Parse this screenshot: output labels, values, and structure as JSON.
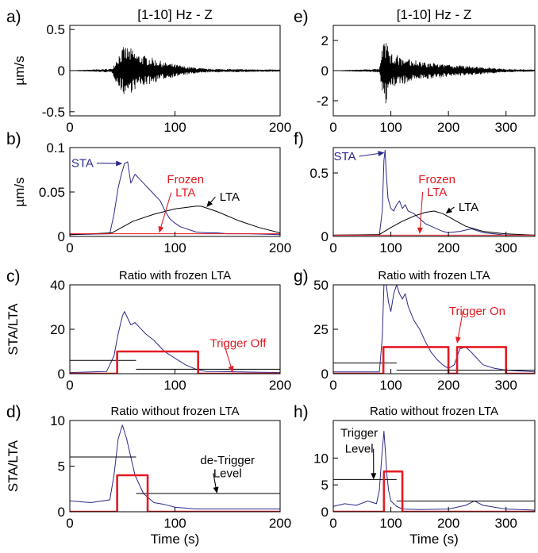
{
  "colors": {
    "sta": "#2b2a8c",
    "lta": "#000000",
    "trigger": "#e31b23",
    "annotation_red": "#e31b23",
    "axis": "#000000"
  },
  "chart_data": [
    {
      "panel": "a)",
      "type": "line",
      "title": "[1-10] Hz - Z",
      "xlabel": "",
      "ylabel": "µm/s",
      "xlim": [
        0,
        200
      ],
      "ylim": [
        -0.55,
        0.55
      ],
      "xticks": [
        0,
        100,
        200
      ],
      "xtick_labels": [
        "0",
        "100",
        "200"
      ],
      "yticks": [
        -0.5,
        0,
        0.5
      ],
      "ytick_labels": [
        "-0.5",
        "0",
        "0.5"
      ],
      "series": [
        {
          "role": "waveform",
          "color": "#000000",
          "x": [
            0,
            40,
            46,
            52,
            58,
            65,
            75,
            90,
            110,
            130,
            200
          ],
          "values": [
            0,
            0.02,
            0.2,
            0.3,
            0.27,
            0.2,
            0.17,
            0.1,
            0.05,
            0.02,
            0.01
          ]
        }
      ],
      "annotations": []
    },
    {
      "panel": "b)",
      "type": "line",
      "title": "",
      "xlabel": "",
      "ylabel": "µm/s",
      "xlim": [
        0,
        200
      ],
      "ylim": [
        0,
        0.1
      ],
      "xticks": [
        0,
        100,
        200
      ],
      "xtick_labels": [
        "0",
        "100",
        "200"
      ],
      "yticks": [
        0,
        0.05,
        0.1
      ],
      "ytick_labels": [
        "0",
        "0.05",
        "0.1"
      ],
      "series": [
        {
          "role": "sta",
          "color": "#2b2a8c",
          "x": [
            0,
            38,
            42,
            46,
            49,
            52,
            55,
            58,
            62,
            66,
            70,
            74,
            78,
            82,
            86,
            90,
            95,
            100,
            105,
            110,
            115,
            120,
            130,
            140,
            150,
            170,
            200
          ],
          "values": [
            0.002,
            0.003,
            0.025,
            0.055,
            0.07,
            0.082,
            0.084,
            0.06,
            0.07,
            0.065,
            0.06,
            0.055,
            0.05,
            0.045,
            0.04,
            0.03,
            0.02,
            0.015,
            0.011,
            0.009,
            0.007,
            0.005,
            0.004,
            0.004,
            0.003,
            0.003,
            0.002
          ]
        },
        {
          "role": "lta",
          "color": "#000000",
          "x": [
            0,
            40,
            60,
            80,
            100,
            120,
            125,
            140,
            160,
            180,
            200
          ],
          "values": [
            0.002,
            0.004,
            0.017,
            0.025,
            0.031,
            0.034,
            0.034,
            0.028,
            0.018,
            0.01,
            0.004
          ]
        },
        {
          "role": "frozen-lta",
          "color": "#e31b23",
          "x": [
            0,
            200
          ],
          "values": [
            0.003,
            0.003
          ]
        }
      ],
      "annotations": [
        {
          "text": "STA",
          "color": "#2b2a8c",
          "x": 12,
          "y": 0.078,
          "arrow_to": [
            50,
            0.082
          ]
        },
        {
          "text": "Frozen",
          "color": "#e31b23",
          "x": 110,
          "y": 0.06
        },
        {
          "text": "LTA",
          "color": "#e31b23",
          "x": 110,
          "y": 0.045,
          "arrow_to": [
            85,
            0.004
          ]
        },
        {
          "text": "LTA",
          "color": "#000000",
          "x": 152,
          "y": 0.04,
          "arrow_to": [
            130,
            0.033
          ]
        }
      ]
    },
    {
      "panel": "c)",
      "type": "line",
      "title": "Ratio with frozen LTA",
      "xlabel": "",
      "ylabel": "STA/LTA",
      "xlim": [
        0,
        200
      ],
      "ylim": [
        0,
        40
      ],
      "xticks": [
        0,
        100,
        200
      ],
      "xtick_labels": [
        "0",
        "100",
        "200"
      ],
      "yticks": [
        0,
        20,
        40
      ],
      "ytick_labels": [
        "0",
        "20",
        "40"
      ],
      "series": [
        {
          "role": "ratio",
          "color": "#2b2a8c",
          "x": [
            0,
            35,
            42,
            46,
            50,
            52,
            55,
            58,
            62,
            66,
            72,
            80,
            90,
            100,
            110,
            120,
            130,
            140,
            200
          ],
          "values": [
            0.5,
            1,
            8,
            18,
            26,
            28,
            25,
            22,
            23,
            21,
            18,
            15,
            10,
            7,
            4,
            2,
            1,
            1,
            0.5
          ]
        },
        {
          "role": "trigger-level",
          "color": "#000000",
          "x": [
            0,
            63
          ],
          "values": [
            6,
            6
          ]
        },
        {
          "role": "detrigger-level",
          "color": "#000000",
          "x": [
            63,
            200
          ],
          "values": [
            2,
            2
          ]
        },
        {
          "role": "trigger",
          "color": "#e31b23",
          "x": [
            0,
            45,
            45,
            122,
            122,
            200
          ],
          "values": [
            0,
            0,
            10,
            10,
            0,
            0
          ]
        }
      ],
      "annotations": [
        {
          "text": "Trigger Off",
          "color": "#e31b23",
          "x": 160,
          "y": 12,
          "arrow_to": [
            155,
            0.5
          ]
        }
      ]
    },
    {
      "panel": "d)",
      "type": "line",
      "title": "Ratio without frozen LTA",
      "xlabel": "Time (s)",
      "ylabel": "STA/LTA",
      "xlim": [
        0,
        200
      ],
      "ylim": [
        0,
        10
      ],
      "xticks": [
        0,
        100,
        200
      ],
      "xtick_labels": [
        "0",
        "100",
        "200"
      ],
      "yticks": [
        0,
        5,
        10
      ],
      "ytick_labels": [
        "0",
        "5",
        "10"
      ],
      "series": [
        {
          "role": "ratio",
          "color": "#2b2a8c",
          "x": [
            0,
            20,
            38,
            42,
            46,
            50,
            54,
            58,
            62,
            66,
            70,
            75,
            80,
            90,
            100,
            120,
            150,
            180,
            200
          ],
          "values": [
            1.2,
            1,
            1.3,
            4,
            8,
            9.5,
            8,
            6,
            4,
            3,
            2,
            1.5,
            1,
            0.8,
            0.5,
            0.3,
            0.3,
            0.3,
            0.3
          ]
        },
        {
          "role": "trigger-level",
          "color": "#000000",
          "x": [
            0,
            63
          ],
          "values": [
            6,
            6
          ]
        },
        {
          "role": "detrigger-level",
          "color": "#000000",
          "x": [
            63,
            200
          ],
          "values": [
            2,
            2
          ]
        },
        {
          "role": "trigger",
          "color": "#e31b23",
          "x": [
            0,
            45,
            45,
            74,
            74,
            200
          ],
          "values": [
            0,
            0,
            4,
            4,
            0,
            0
          ]
        }
      ],
      "annotations": [
        {
          "text": "de-Trigger",
          "color": "#000000",
          "x": 150,
          "y": 5.2
        },
        {
          "text": "Level",
          "color": "#000000",
          "x": 150,
          "y": 3.8,
          "arrow_to": [
            140,
            2
          ]
        }
      ]
    },
    {
      "panel": "e)",
      "type": "line",
      "title": "[1-10] Hz - Z",
      "xlabel": "",
      "ylabel": "",
      "xlim": [
        0,
        350
      ],
      "ylim": [
        -3,
        3
      ],
      "xticks": [
        0,
        100,
        200,
        300
      ],
      "xtick_labels": [
        "0",
        "100",
        "200",
        "300"
      ],
      "yticks": [
        -2,
        0,
        2
      ],
      "ytick_labels": [
        "-2",
        "0",
        "2"
      ],
      "series": [
        {
          "role": "waveform",
          "color": "#000000",
          "x": [
            0,
            80,
            85,
            90,
            100,
            120,
            150,
            200,
            250,
            300,
            350
          ],
          "values": [
            0,
            0.1,
            1.5,
            2.3,
            1.2,
            0.9,
            0.6,
            0.4,
            0.25,
            0.1,
            0.05
          ]
        }
      ],
      "annotations": []
    },
    {
      "panel": "f)",
      "type": "line",
      "title": "",
      "xlabel": "",
      "ylabel": "",
      "xlim": [
        0,
        350
      ],
      "ylim": [
        0,
        0.7
      ],
      "xticks": [
        0,
        100,
        200,
        300
      ],
      "xtick_labels": [
        "0",
        "100",
        "200",
        "300"
      ],
      "yticks": [
        0,
        0.5
      ],
      "ytick_labels": [
        "0",
        "0.5"
      ],
      "series": [
        {
          "role": "sta",
          "color": "#2b2a8c",
          "x": [
            0,
            80,
            85,
            88,
            90,
            92,
            95,
            100,
            105,
            110,
            115,
            120,
            125,
            130,
            140,
            150,
            160,
            170,
            180,
            190,
            200,
            220,
            240,
            260,
            280,
            300,
            350
          ],
          "values": [
            0.01,
            0.01,
            0.2,
            0.6,
            0.68,
            0.5,
            0.3,
            0.22,
            0.2,
            0.25,
            0.28,
            0.22,
            0.25,
            0.2,
            0.18,
            0.14,
            0.1,
            0.08,
            0.06,
            0.04,
            0.03,
            0.04,
            0.06,
            0.03,
            0.02,
            0.01,
            0.01
          ]
        },
        {
          "role": "lta",
          "color": "#000000",
          "x": [
            0,
            80,
            100,
            120,
            140,
            160,
            175,
            190,
            210,
            230,
            260,
            300,
            350
          ],
          "values": [
            0.01,
            0.015,
            0.07,
            0.12,
            0.16,
            0.19,
            0.2,
            0.18,
            0.13,
            0.08,
            0.04,
            0.02,
            0.01
          ]
        },
        {
          "role": "frozen-lta",
          "color": "#e31b23",
          "x": [
            0,
            350
          ],
          "values": [
            0.01,
            0.01
          ]
        }
      ],
      "annotations": [
        {
          "text": "STA",
          "color": "#2b2a8c",
          "x": 20,
          "y": 0.6,
          "arrow_to": [
            89,
            0.66
          ]
        },
        {
          "text": "Frozen",
          "color": "#e31b23",
          "x": 180,
          "y": 0.42
        },
        {
          "text": "LTA",
          "color": "#e31b23",
          "x": 180,
          "y": 0.32,
          "arrow_to": [
            150,
            0.02
          ]
        },
        {
          "text": "LTA",
          "color": "#000000",
          "x": 235,
          "y": 0.2,
          "arrow_to": [
            195,
            0.18
          ]
        }
      ]
    },
    {
      "panel": "g)",
      "type": "line",
      "title": "Ratio with frozen LTA",
      "xlabel": "",
      "ylabel": "",
      "xlim": [
        0,
        350
      ],
      "ylim": [
        0,
        50
      ],
      "xticks": [
        0,
        100,
        200,
        300
      ],
      "xtick_labels": [
        "0",
        "100",
        "200",
        "300"
      ],
      "yticks": [
        0,
        25,
        50
      ],
      "ytick_labels": [
        "0",
        "25",
        "50"
      ],
      "series": [
        {
          "role": "ratio",
          "color": "#2b2a8c",
          "x": [
            0,
            80,
            85,
            88,
            92,
            96,
            100,
            105,
            110,
            115,
            120,
            125,
            130,
            140,
            150,
            160,
            170,
            180,
            190,
            200,
            210,
            220,
            230,
            240,
            260,
            280,
            300,
            350
          ],
          "values": [
            1,
            1,
            20,
            50,
            50,
            40,
            35,
            45,
            50,
            45,
            42,
            45,
            38,
            30,
            25,
            18,
            12,
            8,
            5,
            3,
            5,
            14,
            15,
            12,
            5,
            3,
            2,
            1
          ]
        },
        {
          "role": "trigger-level",
          "color": "#000000",
          "x": [
            0,
            110
          ],
          "values": [
            6,
            6
          ]
        },
        {
          "role": "detrigger-level",
          "color": "#000000",
          "x": [
            110,
            350
          ],
          "values": [
            2,
            2
          ]
        },
        {
          "role": "trigger",
          "color": "#e31b23",
          "x": [
            0,
            87,
            87,
            200,
            200,
            215,
            215,
            300,
            300,
            350
          ],
          "values": [
            0,
            0,
            15,
            15,
            0,
            0,
            15,
            15,
            0,
            0
          ]
        }
      ],
      "annotations": [
        {
          "text": "Trigger On",
          "color": "#e31b23",
          "x": 250,
          "y": 33,
          "arrow_to": [
            215,
            17
          ]
        }
      ]
    },
    {
      "panel": "h)",
      "type": "line",
      "title": "Ratio without frozen LTA",
      "xlabel": "Time (s)",
      "ylabel": "",
      "xlim": [
        0,
        350
      ],
      "ylim": [
        0,
        17
      ],
      "xticks": [
        0,
        100,
        200,
        300
      ],
      "xtick_labels": [
        "0",
        "100",
        "200",
        "300"
      ],
      "yticks": [
        0,
        5,
        10
      ],
      "ytick_labels": [
        "0",
        "5",
        "10"
      ],
      "series": [
        {
          "role": "ratio",
          "color": "#2b2a8c",
          "x": [
            0,
            20,
            40,
            60,
            75,
            80,
            84,
            88,
            90,
            93,
            96,
            100,
            110,
            120,
            150,
            200,
            230,
            245,
            260,
            300,
            350
          ],
          "values": [
            1,
            1.5,
            1.2,
            2,
            1.5,
            4,
            10,
            15,
            12,
            7,
            4,
            2,
            1,
            0.5,
            0.4,
            0.5,
            1.2,
            2,
            1.2,
            0.5,
            0.3
          ]
        },
        {
          "role": "trigger-level",
          "color": "#000000",
          "x": [
            0,
            110
          ],
          "values": [
            6,
            6
          ]
        },
        {
          "role": "detrigger-level",
          "color": "#000000",
          "x": [
            110,
            350
          ],
          "values": [
            2,
            2
          ]
        },
        {
          "role": "trigger",
          "color": "#e31b23",
          "x": [
            0,
            88,
            88,
            120,
            120,
            350
          ],
          "values": [
            0,
            0,
            7.5,
            7.5,
            0,
            0
          ]
        }
      ],
      "annotations": [
        {
          "text": "Trigger",
          "color": "#000000",
          "x": 45,
          "y": 14
        },
        {
          "text": "Level",
          "color": "#000000",
          "x": 45,
          "y": 11,
          "arrow_to": [
            70,
            6
          ]
        }
      ]
    }
  ]
}
